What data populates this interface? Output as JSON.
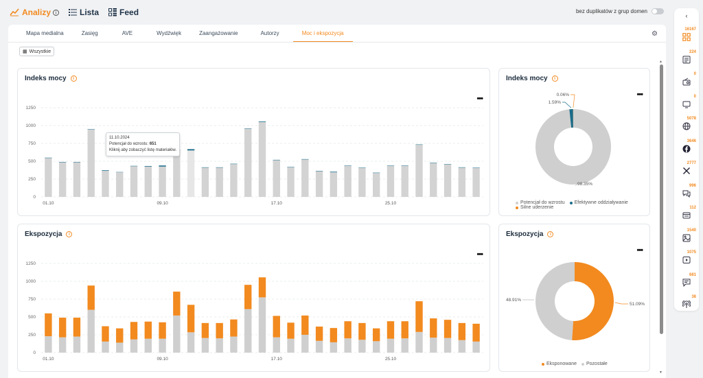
{
  "header": {
    "nav": [
      {
        "label": "Analizy",
        "icon": "trend-chart-icon",
        "active": true
      },
      {
        "label": "Lista",
        "icon": "list-icon",
        "active": false
      },
      {
        "label": "Feed",
        "icon": "feed-grid-icon",
        "active": false
      }
    ],
    "duplicates_label": "bez duplikatów z grup domen"
  },
  "tabs": [
    "Mapa medialna",
    "Zasięg",
    "AVE",
    "Wydźwięk",
    "Zaangażowanie",
    "Autorzy",
    "Moc i ekspozycja"
  ],
  "active_tab": "Moc i ekspozycja",
  "filter_button": "Wszystkie",
  "cards": {
    "power_bar_title": "Indeks mocy",
    "power_pie_title": "Indeks mocy",
    "exposure_bar_title": "Ekspozycja",
    "exposure_pie_title": "Ekspozycja"
  },
  "tooltip": {
    "date": "11.10.2024",
    "label": "Potencjał do wzrostu:",
    "value": "651",
    "hint": "Kliknij aby zobaczyć listę materiałów."
  },
  "power_legend": [
    "Potencjał do wzrostu",
    "Efektywne oddziaływanie",
    "Silne uderzenie"
  ],
  "exposure_legend": [
    "Eksponowane",
    "Pozostałe"
  ],
  "colors": {
    "accent": "#f28a1f",
    "grey": "#cfcfcf",
    "teal": "#1b6c8a"
  },
  "sidebar": [
    {
      "count": "16167",
      "icon": "all-sources-icon"
    },
    {
      "count": "224",
      "icon": "newspaper-icon"
    },
    {
      "count": "0",
      "icon": "radio-icon"
    },
    {
      "count": "0",
      "icon": "tv-icon"
    },
    {
      "count": "5078",
      "icon": "web-globe-icon"
    },
    {
      "count": "3646",
      "icon": "facebook-icon"
    },
    {
      "count": "2777",
      "icon": "x-twitter-icon"
    },
    {
      "count": "996",
      "icon": "forum-icon"
    },
    {
      "count": "112",
      "icon": "news-portal-icon"
    },
    {
      "count": "1540",
      "icon": "instagram-image-icon"
    },
    {
      "count": "1075",
      "icon": "youtube-video-icon"
    },
    {
      "count": "681",
      "icon": "comments-icon"
    },
    {
      "count": "38",
      "icon": "podcast-icon"
    }
  ],
  "chart_data": [
    {
      "type": "bar",
      "title": "Indeks mocy",
      "x_ticks": [
        "01.10",
        "09.10",
        "17.10",
        "25.10"
      ],
      "ylim": [
        0,
        1250
      ],
      "y_ticks": [
        0,
        250,
        500,
        750,
        1000,
        1250
      ],
      "series": [
        {
          "name": "Potencjał do wzrostu",
          "values": [
            545,
            485,
            485,
            945,
            365,
            345,
            430,
            425,
            425,
            655,
            651,
            410,
            410,
            460,
            955,
            1050,
            515,
            415,
            525,
            360,
            345,
            435,
            405,
            335,
            435,
            435,
            730,
            475,
            455,
            410,
            405
          ]
        },
        {
          "name": "Efektywne oddziaływanie",
          "values": [
            5,
            5,
            5,
            5,
            8,
            4,
            5,
            8,
            15,
            5,
            18,
            5,
            5,
            5,
            5,
            8,
            5,
            5,
            5,
            5,
            8,
            5,
            5,
            5,
            5,
            5,
            5,
            5,
            5,
            5,
            5
          ]
        }
      ]
    },
    {
      "type": "pie",
      "title": "Indeks mocy",
      "slices": [
        {
          "label": "Potencjał do wzrostu",
          "value": 98.35,
          "text": "98.35%"
        },
        {
          "label": "Efektywne oddziaływanie",
          "value": 1.59,
          "text": "1.59%"
        },
        {
          "label": "Silne uderzenie",
          "value": 0.06,
          "text": "0.06%"
        }
      ]
    },
    {
      "type": "bar",
      "title": "Ekspozycja",
      "x_ticks": [
        "01.10",
        "09.10",
        "17.10",
        "25.10"
      ],
      "ylim": [
        0,
        1250
      ],
      "y_ticks": [
        0,
        250,
        500,
        750,
        1000,
        1250
      ],
      "series": [
        {
          "name": "Pozostałe",
          "values": [
            230,
            215,
            225,
            600,
            155,
            140,
            185,
            195,
            195,
            520,
            285,
            205,
            200,
            225,
            610,
            775,
            215,
            195,
            250,
            165,
            145,
            200,
            180,
            160,
            195,
            200,
            290,
            210,
            205,
            175,
            155
          ]
        },
        {
          "name": "Eksponowane",
          "values": [
            320,
            275,
            265,
            340,
            215,
            200,
            245,
            240,
            230,
            335,
            385,
            210,
            215,
            240,
            340,
            280,
            300,
            225,
            270,
            200,
            200,
            240,
            235,
            180,
            245,
            240,
            430,
            270,
            255,
            240,
            250
          ]
        }
      ]
    },
    {
      "type": "pie",
      "title": "Ekspozycja",
      "slices": [
        {
          "label": "Eksponowane",
          "value": 51.09,
          "text": "51.09%"
        },
        {
          "label": "Pozostałe",
          "value": 48.91,
          "text": "48.91%"
        }
      ]
    }
  ]
}
